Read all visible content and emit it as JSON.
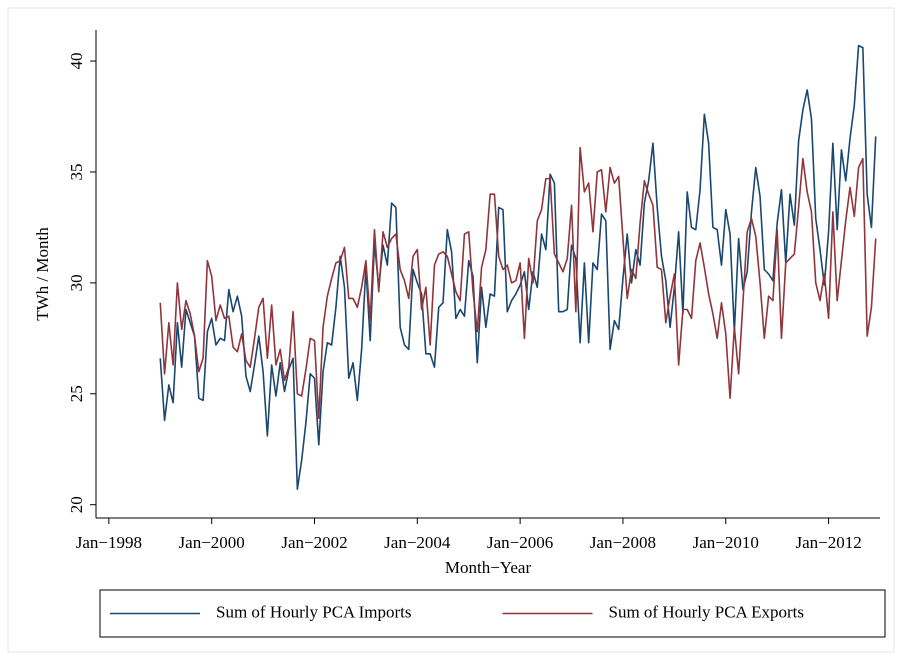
{
  "chart_data": {
    "type": "line",
    "y_label": "TWh / Month",
    "x_label": "Month−Year",
    "legend": "bottom",
    "grid": false,
    "xlim": [
      "1997-10",
      "2013-01"
    ],
    "ylim": [
      19.4,
      41.4
    ],
    "yticks": [
      20,
      25,
      30,
      35,
      40
    ],
    "xticks": [
      {
        "value": "1998-01",
        "label": "Jan−1998"
      },
      {
        "value": "2000-01",
        "label": "Jan−2000"
      },
      {
        "value": "2002-01",
        "label": "Jan−2002"
      },
      {
        "value": "2004-01",
        "label": "Jan−2004"
      },
      {
        "value": "2006-01",
        "label": "Jan−2006"
      },
      {
        "value": "2008-01",
        "label": "Jan−2008"
      },
      {
        "value": "2010-01",
        "label": "Jan−2010"
      },
      {
        "value": "2012-01",
        "label": "Jan−2012"
      }
    ],
    "x": [
      "1999-01",
      "1999-02",
      "1999-03",
      "1999-04",
      "1999-05",
      "1999-06",
      "1999-07",
      "1999-08",
      "1999-09",
      "1999-10",
      "1999-11",
      "1999-12",
      "2000-01",
      "2000-02",
      "2000-03",
      "2000-04",
      "2000-05",
      "2000-06",
      "2000-07",
      "2000-08",
      "2000-09",
      "2000-10",
      "2000-11",
      "2000-12",
      "2001-01",
      "2001-02",
      "2001-03",
      "2001-04",
      "2001-05",
      "2001-06",
      "2001-07",
      "2001-08",
      "2001-09",
      "2001-10",
      "2001-11",
      "2001-12",
      "2002-01",
      "2002-02",
      "2002-03",
      "2002-04",
      "2002-05",
      "2002-06",
      "2002-07",
      "2002-08",
      "2002-09",
      "2002-10",
      "2002-11",
      "2002-12",
      "2003-01",
      "2003-02",
      "2003-03",
      "2003-04",
      "2003-05",
      "2003-06",
      "2003-07",
      "2003-08",
      "2003-09",
      "2003-10",
      "2003-11",
      "2003-12",
      "2004-01",
      "2004-02",
      "2004-03",
      "2004-04",
      "2004-05",
      "2004-06",
      "2004-07",
      "2004-08",
      "2004-09",
      "2004-10",
      "2004-11",
      "2004-12",
      "2005-01",
      "2005-02",
      "2005-03",
      "2005-04",
      "2005-05",
      "2005-06",
      "2005-07",
      "2005-08",
      "2005-09",
      "2005-10",
      "2005-11",
      "2005-12",
      "2006-01",
      "2006-02",
      "2006-03",
      "2006-04",
      "2006-05",
      "2006-06",
      "2006-07",
      "2006-08",
      "2006-09",
      "2006-10",
      "2006-11",
      "2006-12",
      "2007-01",
      "2007-02",
      "2007-03",
      "2007-04",
      "2007-05",
      "2007-06",
      "2007-07",
      "2007-08",
      "2007-09",
      "2007-10",
      "2007-11",
      "2007-12",
      "2008-01",
      "2008-02",
      "2008-03",
      "2008-04",
      "2008-05",
      "2008-06",
      "2008-07",
      "2008-08",
      "2008-09",
      "2008-10",
      "2008-11",
      "2008-12",
      "2009-01",
      "2009-02",
      "2009-03",
      "2009-04",
      "2009-05",
      "2009-06",
      "2009-07",
      "2009-08",
      "2009-09",
      "2009-10",
      "2009-11",
      "2009-12",
      "2010-01",
      "2010-02",
      "2010-03",
      "2010-04",
      "2010-05",
      "2010-06",
      "2010-07",
      "2010-08",
      "2010-09",
      "2010-10",
      "2010-11",
      "2010-12",
      "2011-01",
      "2011-02",
      "2011-03",
      "2011-04",
      "2011-05",
      "2011-06",
      "2011-07",
      "2011-08",
      "2011-09",
      "2011-10",
      "2011-11",
      "2011-12",
      "2012-01",
      "2012-02",
      "2012-03",
      "2012-04",
      "2012-05",
      "2012-06",
      "2012-07",
      "2012-08",
      "2012-09",
      "2012-10",
      "2012-11",
      "2012-12"
    ],
    "series": [
      {
        "name": "Sum of Hourly PCA Imports",
        "color": "#1a476f",
        "values": [
          26.6,
          23.8,
          25.4,
          24.6,
          28.2,
          26.2,
          28.8,
          28.2,
          27.6,
          24.8,
          24.7,
          27.8,
          28.4,
          27.2,
          27.5,
          27.4,
          29.7,
          28.7,
          29.4,
          28.5,
          25.8,
          25.1,
          26.3,
          27.6,
          26.0,
          23.1,
          26.3,
          24.9,
          26.4,
          25.1,
          26.1,
          26.6,
          20.7,
          22.0,
          23.7,
          25.9,
          25.7,
          22.7,
          26.0,
          27.3,
          27.2,
          28.9,
          31.2,
          29.8,
          25.7,
          26.4,
          24.7,
          27.0,
          30.7,
          27.4,
          31.8,
          29.8,
          31.7,
          30.8,
          33.6,
          33.4,
          28.0,
          27.2,
          27.0,
          30.6,
          30.0,
          29.5,
          26.8,
          26.8,
          26.2,
          28.9,
          29.1,
          32.4,
          31.4,
          28.4,
          28.8,
          28.5,
          31.0,
          30.3,
          26.4,
          29.8,
          28.0,
          29.5,
          29.4,
          33.4,
          33.3,
          28.7,
          29.2,
          29.5,
          29.9,
          30.5,
          28.8,
          30.5,
          29.8,
          32.2,
          31.5,
          34.9,
          34.5,
          28.7,
          28.7,
          28.8,
          31.7,
          31.1,
          27.3,
          30.9,
          27.3,
          30.9,
          30.6,
          33.1,
          32.8,
          27.0,
          28.3,
          27.9,
          30.2,
          32.2,
          30.0,
          31.5,
          30.8,
          33.6,
          34.6,
          36.3,
          33.4,
          31.2,
          30.1,
          28.0,
          29.8,
          32.3,
          28.6,
          34.1,
          32.5,
          32.4,
          34.2,
          37.6,
          36.3,
          32.5,
          32.4,
          30.8,
          33.3,
          32.2,
          27.8,
          32.0,
          29.7,
          30.5,
          33.2,
          35.2,
          33.9,
          30.6,
          30.4,
          30.1,
          32.7,
          34.2,
          30.9,
          34.0,
          32.6,
          36.4,
          37.8,
          38.7,
          37.4,
          32.9,
          31.5,
          29.9,
          32.3,
          36.3,
          32.4,
          36.0,
          34.6,
          36.5,
          38.0,
          40.7,
          40.6,
          34.0,
          32.5,
          36.6
        ]
      },
      {
        "name": "Sum of Hourly PCA Exports",
        "color": "#90353b",
        "values": [
          29.1,
          25.9,
          28.2,
          26.3,
          30.0,
          27.9,
          29.2,
          28.6,
          27.6,
          26.0,
          26.6,
          31.0,
          30.3,
          28.3,
          29.0,
          28.4,
          28.5,
          27.1,
          26.9,
          27.7,
          26.5,
          26.2,
          27.5,
          28.9,
          29.3,
          26.6,
          29.0,
          26.3,
          27.0,
          25.6,
          26.2,
          28.7,
          25.0,
          24.9,
          26.1,
          27.5,
          27.4,
          23.9,
          28.0,
          29.4,
          30.2,
          30.9,
          31.0,
          31.6,
          29.3,
          29.3,
          28.9,
          29.8,
          31.0,
          28.3,
          32.4,
          29.6,
          32.3,
          31.6,
          32.0,
          32.2,
          30.6,
          30.1,
          29.3,
          31.2,
          31.5,
          28.8,
          29.8,
          27.2,
          30.8,
          31.3,
          31.4,
          31.2,
          30.4,
          29.6,
          29.2,
          32.2,
          32.3,
          29.6,
          27.8,
          30.7,
          31.5,
          34.0,
          34.0,
          31.2,
          30.6,
          30.8,
          30.0,
          30.1,
          30.9,
          27.5,
          31.1,
          30.0,
          32.8,
          33.3,
          34.7,
          34.7,
          31.3,
          30.9,
          30.5,
          31.1,
          33.5,
          28.7,
          36.1,
          34.1,
          34.5,
          32.3,
          35.0,
          35.1,
          33.2,
          35.2,
          34.5,
          34.8,
          32.0,
          29.3,
          30.6,
          30.2,
          32.7,
          34.6,
          34.0,
          33.5,
          30.7,
          30.6,
          28.2,
          29.4,
          30.4,
          26.3,
          28.8,
          28.8,
          28.4,
          31.0,
          31.8,
          30.7,
          29.5,
          28.6,
          27.5,
          29.1,
          27.7,
          24.8,
          28.0,
          25.9,
          29.1,
          32.3,
          32.9,
          32.1,
          30.0,
          27.5,
          29.4,
          29.2,
          32.4,
          27.5,
          30.9,
          31.1,
          31.3,
          33.4,
          35.6,
          34.1,
          33.2,
          30.0,
          29.2,
          30.4,
          28.4,
          33.2,
          29.2,
          31.0,
          32.8,
          34.3,
          33.0,
          35.2,
          35.6,
          27.6,
          28.9,
          32.0
        ]
      }
    ]
  }
}
